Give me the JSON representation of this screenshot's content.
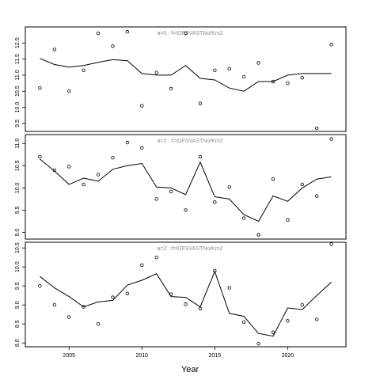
{
  "chart_data": [
    {
      "type": "line",
      "annotation": "a=0  :  f=IGFSVASTNo/Km2",
      "xlim": [
        2002,
        2024
      ],
      "ylim": [
        9.25,
        12.5
      ],
      "yticks": [
        "9.5",
        "10.0",
        "10.5",
        "11.0",
        "11.5",
        "12.0"
      ],
      "yticks_values": [
        9.5,
        10.0,
        10.5,
        11.0,
        11.5,
        12.0
      ],
      "series": [
        {
          "kind": "line",
          "x": [
            2003,
            2004,
            2005,
            2006,
            2007,
            2008,
            2009,
            2010,
            2011,
            2012,
            2013,
            2014,
            2015,
            2016,
            2017,
            2018,
            2019,
            2020,
            2021,
            2022,
            2023
          ],
          "y": [
            11.52,
            11.33,
            11.25,
            11.3,
            11.4,
            11.48,
            11.45,
            11.05,
            11.0,
            11.0,
            11.3,
            10.9,
            10.85,
            10.6,
            10.5,
            10.8,
            10.8,
            11.0,
            11.05,
            11.05,
            11.05
          ]
        },
        {
          "kind": "points",
          "x": [
            2003,
            2004,
            2005,
            2006,
            2007,
            2008,
            2009,
            2010,
            2011,
            2012,
            2013,
            2014,
            2015,
            2016,
            2017,
            2018,
            2019,
            2020,
            2021,
            2022,
            2023
          ],
          "y": [
            10.6,
            11.8,
            10.5,
            11.15,
            12.3,
            11.9,
            12.35,
            10.05,
            11.08,
            10.58,
            12.3,
            10.12,
            11.15,
            11.2,
            10.95,
            11.38,
            10.8,
            10.75,
            10.92,
            9.35,
            11.95
          ]
        }
      ]
    },
    {
      "type": "line",
      "annotation": "a=1  :  f=IGFSVASTNo/Km2",
      "xlim": [
        2002,
        2024
      ],
      "ylim": [
        8.85,
        11.2
      ],
      "yticks": [
        "9.0",
        "9.5",
        "10.0",
        "10.5",
        "11.0"
      ],
      "yticks_values": [
        9.0,
        9.5,
        10.0,
        10.5,
        11.0
      ],
      "series": [
        {
          "kind": "line",
          "x": [
            2003,
            2004,
            2005,
            2006,
            2007,
            2008,
            2009,
            2010,
            2011,
            2012,
            2013,
            2014,
            2015,
            2016,
            2017,
            2018,
            2019,
            2020,
            2021,
            2022,
            2023
          ],
          "y": [
            10.65,
            10.38,
            10.08,
            10.22,
            10.15,
            10.42,
            10.5,
            10.55,
            10.02,
            10.0,
            9.85,
            10.58,
            9.8,
            9.75,
            9.4,
            9.25,
            9.82,
            9.7,
            10.0,
            10.2,
            10.25
          ]
        },
        {
          "kind": "points",
          "x": [
            2003,
            2004,
            2005,
            2006,
            2007,
            2008,
            2009,
            2010,
            2011,
            2012,
            2013,
            2014,
            2015,
            2016,
            2017,
            2018,
            2019,
            2020,
            2021,
            2022,
            2023
          ],
          "y": [
            10.7,
            10.4,
            10.48,
            10.08,
            10.3,
            10.68,
            11.02,
            10.9,
            9.75,
            9.92,
            9.5,
            10.7,
            9.68,
            10.02,
            9.32,
            8.95,
            10.2,
            9.28,
            10.08,
            9.82,
            11.1
          ]
        }
      ]
    },
    {
      "type": "line",
      "annotation": "a=2  :  f=IGFSVASTNo/Km2",
      "xlim": [
        2002,
        2024
      ],
      "ylim": [
        7.9,
        10.65
      ],
      "yticks": [
        "8.0",
        "8.5",
        "9.0",
        "9.5",
        "10.0",
        "10.5"
      ],
      "yticks_values": [
        8.0,
        8.5,
        9.0,
        9.5,
        10.0,
        10.5
      ],
      "series": [
        {
          "kind": "line",
          "x": [
            2003,
            2004,
            2005,
            2006,
            2007,
            2008,
            2009,
            2010,
            2011,
            2012,
            2013,
            2014,
            2015,
            2016,
            2017,
            2018,
            2019,
            2020,
            2021,
            2022,
            2023
          ],
          "y": [
            9.75,
            9.45,
            9.22,
            8.95,
            9.08,
            9.12,
            9.52,
            9.65,
            9.82,
            9.22,
            9.2,
            8.95,
            9.88,
            8.78,
            8.7,
            8.25,
            8.18,
            8.92,
            8.88,
            9.25,
            9.6
          ]
        },
        {
          "kind": "points",
          "x": [
            2003,
            2004,
            2005,
            2006,
            2007,
            2008,
            2009,
            2010,
            2011,
            2012,
            2013,
            2014,
            2015,
            2016,
            2017,
            2018,
            2019,
            2020,
            2021,
            2022,
            2023
          ],
          "y": [
            9.5,
            9.0,
            8.68,
            8.95,
            8.5,
            9.2,
            9.3,
            10.05,
            10.25,
            9.28,
            9.02,
            8.9,
            9.9,
            9.45,
            8.55,
            7.98,
            8.28,
            8.58,
            9.0,
            8.62,
            10.6
          ]
        }
      ]
    }
  ],
  "x_axis": {
    "label": "Year",
    "ticks": [
      "2005",
      "2010",
      "2015",
      "2020"
    ],
    "tick_values": [
      2005,
      2010,
      2015,
      2020
    ]
  },
  "colors": {
    "line": "#000000",
    "points": "#000000",
    "annotation": "#8c8c8c",
    "axis": "#000000"
  }
}
